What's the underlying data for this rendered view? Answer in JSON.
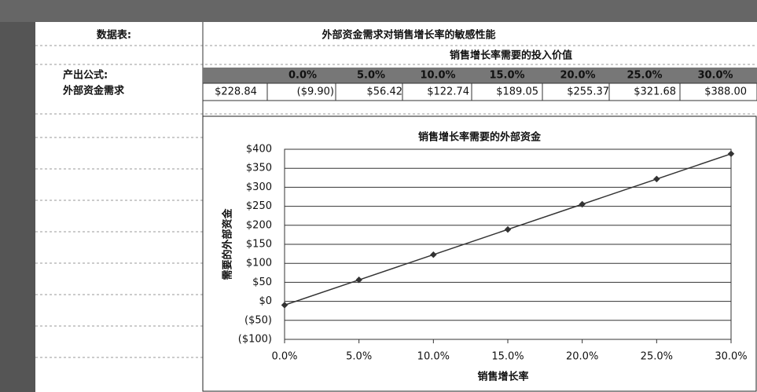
{
  "table": {
    "title_label": "数据表:",
    "title": "外部资金需求对销售增长率的敏感性能",
    "subheader": "销售增长率需要的投入价值",
    "row_labels": [
      "产出公式:",
      "外部资金需求"
    ],
    "columns": [
      "0.0%",
      "5.0%",
      "10.0%",
      "15.0%",
      "20.0%",
      "25.0%",
      "30.0%"
    ],
    "base": "$228.84",
    "cells": [
      "($9.90)",
      "$56.42",
      "$122.74",
      "$189.05",
      "$255.37",
      "$321.68",
      "$388.00"
    ]
  },
  "chart_data": {
    "type": "line",
    "title": "销售增长率需要的外部资金",
    "x_label": "销售增长率",
    "y_label": "需要的外部资金",
    "x": [
      0,
      5,
      10,
      15,
      20,
      25,
      30
    ],
    "series": [
      {
        "name": "外部资金需求",
        "color": "#333333",
        "values": [
          -9.9,
          56.42,
          122.74,
          189.05,
          255.37,
          321.68,
          388
        ]
      }
    ],
    "xlim": [
      0,
      30
    ],
    "xticks": [
      {
        "value": 0,
        "label": "0.0%"
      },
      {
        "value": 5,
        "label": "5.0%"
      },
      {
        "value": 10,
        "label": "10.0%"
      },
      {
        "value": 15,
        "label": "15.0%"
      },
      {
        "value": 20,
        "label": "20.0%"
      },
      {
        "value": 25,
        "label": "25.0%"
      },
      {
        "value": 30,
        "label": "30.0%"
      }
    ],
    "ylim": [
      -100,
      400
    ],
    "yticks": [
      {
        "value": -100,
        "label": "($100)"
      },
      {
        "value": -50,
        "label": "($50)"
      },
      {
        "value": 0,
        "label": "$0"
      },
      {
        "value": 50,
        "label": "$50"
      },
      {
        "value": 100,
        "label": "$100"
      },
      {
        "value": 150,
        "label": "$150"
      },
      {
        "value": 200,
        "label": "$200"
      },
      {
        "value": 250,
        "label": "$250"
      },
      {
        "value": 300,
        "label": "$300"
      },
      {
        "value": 350,
        "label": "$350"
      },
      {
        "value": 400,
        "label": "$400"
      }
    ],
    "grid": true
  }
}
